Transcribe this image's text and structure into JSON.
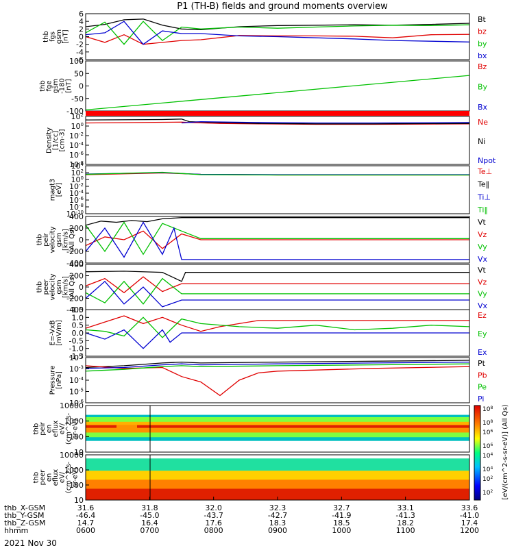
{
  "title": "P1 (TH-B) fields and ground moments overview",
  "date_label": "2021 Nov 30",
  "colors": {
    "black": "#000000",
    "red": "#e00000",
    "green": "#00c000",
    "blue": "#0000d0",
    "axis": "#000000"
  },
  "chart_data": [
    {
      "type": "line",
      "panel": "fgs-gsm",
      "ylabel_lines": [
        "thb",
        "fgs",
        "gsm",
        "[nT]"
      ],
      "yticks": [
        "6",
        "4",
        "2",
        "0",
        "-2",
        "-4",
        "-6"
      ],
      "ylim": [
        -6,
        6
      ],
      "legend": [
        {
          "label": "Bt",
          "color": "#000000"
        },
        {
          "label": "bz",
          "color": "#e00000"
        },
        {
          "label": "by",
          "color": "#00c000"
        },
        {
          "label": "bx",
          "color": "#0000d0"
        }
      ],
      "series": [
        {
          "color": "#000000",
          "x": [
            0,
            0.05,
            0.1,
            0.15,
            0.2,
            0.25,
            0.3,
            0.4,
            0.5,
            0.6,
            0.7,
            0.8,
            0.9,
            1
          ],
          "y": [
            2.6,
            3.2,
            4.4,
            4.6,
            3.0,
            2.0,
            1.8,
            2.6,
            2.9,
            3.0,
            3.1,
            3.0,
            3.2,
            3.5
          ]
        },
        {
          "color": "#e00000",
          "x": [
            0,
            0.05,
            0.1,
            0.15,
            0.2,
            0.25,
            0.3,
            0.4,
            0.5,
            0.6,
            0.7,
            0.8,
            0.9,
            1
          ],
          "y": [
            0,
            -1.5,
            0.5,
            -2,
            -1.5,
            -1.0,
            -0.8,
            0.3,
            0.2,
            0.2,
            0.1,
            -0.3,
            0.5,
            0.6
          ]
        },
        {
          "color": "#00c000",
          "x": [
            0,
            0.05,
            0.1,
            0.15,
            0.2,
            0.25,
            0.3,
            0.4,
            0.5,
            0.6,
            0.7,
            0.8,
            0.9,
            1
          ],
          "y": [
            1,
            3.8,
            -2,
            4,
            -1,
            2.5,
            2.0,
            2.5,
            2.2,
            2.5,
            2.8,
            3.0,
            2.9,
            3.1
          ]
        },
        {
          "color": "#0000d0",
          "x": [
            0,
            0.05,
            0.1,
            0.15,
            0.2,
            0.25,
            0.3,
            0.4,
            0.5,
            0.6,
            0.7,
            0.8,
            0.9,
            1
          ],
          "y": [
            0.5,
            1,
            4,
            -2,
            1.5,
            0.8,
            0.8,
            0.2,
            0.0,
            -0.3,
            -0.6,
            -1.0,
            -1.2,
            -1.4
          ]
        }
      ]
    },
    {
      "type": "line",
      "panel": "fge-gsm",
      "ylabel_lines": [
        "thb",
        "fge",
        "gsm",
        "-180",
        "[nT]"
      ],
      "yticks": [
        "100",
        "50",
        "0",
        "-50",
        "-100"
      ],
      "ylim": [
        -125,
        100
      ],
      "legend": [
        {
          "label": "Bz",
          "color": "#e00000"
        },
        {
          "label": "By",
          "color": "#00c000"
        },
        {
          "label": "Bx",
          "color": "#0000d0"
        }
      ],
      "series": [
        {
          "color": "#00c000",
          "x": [
            0,
            1
          ],
          "y": [
            -120,
            35
          ]
        }
      ]
    },
    {
      "type": "line",
      "panel": "density",
      "ylabel_lines": [
        "Density",
        "[1/cc]",
        "[cm-3]"
      ],
      "yticks": [
        "10^2",
        "10^0",
        "10^-2",
        "10^-4",
        "10^-6",
        "10^-8"
      ],
      "ylim": [
        -8,
        3
      ],
      "legend": [
        {
          "label": "Ne",
          "color": "#e00000"
        },
        {
          "label": "Ni",
          "color": "#000000"
        },
        {
          "label": "Npot",
          "color": "#0000d0"
        }
      ],
      "series": [
        {
          "color": "#e00000",
          "x": [
            0,
            0.25,
            0.27,
            0.35,
            0.45,
            0.6,
            0.75,
            1
          ],
          "y": [
            1.5,
            1.7,
            1.6,
            1.4,
            1.3,
            1.2,
            1.2,
            1.3
          ]
        },
        {
          "color": "#000000",
          "x": [
            0,
            0.2,
            0.25,
            0.27,
            0.35,
            0.45,
            0.6,
            0.75,
            1
          ],
          "y": [
            2.2,
            2.3,
            2.4,
            1.8,
            1.6,
            1.4,
            1.3,
            1.3,
            1.4
          ]
        },
        {
          "color": "#0000d0",
          "x": [
            0.25,
            0.3,
            0.45,
            0.6,
            0.75,
            1
          ],
          "y": [
            1.5,
            1.8,
            1.6,
            1.5,
            1.5,
            1.6
          ]
        }
      ]
    },
    {
      "type": "line",
      "panel": "temperature",
      "ylabel_lines": [
        "magt3",
        "[eV]"
      ],
      "yticks": [
        "10^4",
        "10^2",
        "10^0",
        "10^-2",
        "10^-4",
        "10^-6",
        "10^-8",
        "10^-10"
      ],
      "ylim": [
        -10,
        4
      ],
      "legend": [
        {
          "label": "Te⊥",
          "color": "#e00000"
        },
        {
          "label": "Te‖",
          "color": "#000000"
        },
        {
          "label": "Ti⊥",
          "color": "#0000d0"
        },
        {
          "label": "Ti‖",
          "color": "#00c000"
        }
      ],
      "series": [
        {
          "color": "#e00000",
          "x": [
            0,
            0.2,
            0.3,
            0.5,
            1
          ],
          "y": [
            1.4,
            1.9,
            1.5,
            1.3,
            1.3
          ]
        },
        {
          "color": "#0000d0",
          "x": [
            0,
            0.2,
            0.3,
            0.5,
            1
          ],
          "y": [
            1.6,
            2.0,
            1.5,
            1.4,
            1.4
          ]
        },
        {
          "color": "#00c000",
          "x": [
            0,
            0.2,
            0.3,
            0.5,
            1
          ],
          "y": [
            1.5,
            2.1,
            1.4,
            1.3,
            1.3
          ]
        }
      ]
    },
    {
      "type": "line",
      "panel": "peir-velocity",
      "ylabel_lines": [
        "thb",
        "peir",
        "velocity",
        "gsm",
        "[km/s]",
        "(All Qs)"
      ],
      "yticks": [
        "400",
        "200",
        "0",
        "-200",
        "-400"
      ],
      "ylim": [
        -400,
        400
      ],
      "legend": [
        {
          "label": "Vt",
          "color": "#000000"
        },
        {
          "label": "Vz",
          "color": "#e00000"
        },
        {
          "label": "Vy",
          "color": "#00c000"
        },
        {
          "label": "Vx",
          "color": "#0000d0"
        }
      ],
      "series": [
        {
          "color": "#000000",
          "x": [
            0,
            0.04,
            0.08,
            0.12,
            0.16,
            0.2,
            0.25,
            1
          ],
          "y": [
            250,
            320,
            300,
            330,
            310,
            360,
            380,
            380
          ]
        },
        {
          "color": "#e00000",
          "x": [
            0,
            0.05,
            0.1,
            0.15,
            0.2,
            0.25,
            0.3,
            1
          ],
          "y": [
            -100,
            50,
            0,
            150,
            -150,
            100,
            0,
            0
          ]
        },
        {
          "color": "#00c000",
          "x": [
            0,
            0.05,
            0.1,
            0.15,
            0.2,
            0.25,
            0.3,
            1
          ],
          "y": [
            250,
            -200,
            300,
            -250,
            280,
            150,
            20,
            20
          ]
        },
        {
          "color": "#0000d0",
          "x": [
            0,
            0.05,
            0.1,
            0.15,
            0.2,
            0.23,
            0.25,
            1
          ],
          "y": [
            -200,
            200,
            -300,
            300,
            -250,
            200,
            -340,
            -340
          ]
        }
      ]
    },
    {
      "type": "line",
      "panel": "peer-velocity",
      "ylabel_lines": [
        "thb",
        "peer",
        "velocity",
        "gsm",
        "[km/s]",
        "(All Qs)"
      ],
      "yticks": [
        "400",
        "200",
        "0",
        "-200",
        "-400"
      ],
      "ylim": [
        -400,
        400
      ],
      "legend": [
        {
          "label": "Vt",
          "color": "#000000"
        },
        {
          "label": "Vz",
          "color": "#e00000"
        },
        {
          "label": "Vy",
          "color": "#00c000"
        },
        {
          "label": "Vx",
          "color": "#0000d0"
        }
      ],
      "series": [
        {
          "color": "#000000",
          "x": [
            0,
            0.1,
            0.2,
            0.25,
            0.26,
            1
          ],
          "y": [
            270,
            280,
            260,
            100,
            260,
            260
          ]
        },
        {
          "color": "#e00000",
          "x": [
            0,
            0.05,
            0.1,
            0.15,
            0.2,
            0.25,
            1
          ],
          "y": [
            20,
            150,
            -100,
            180,
            -80,
            60,
            60
          ]
        },
        {
          "color": "#00c000",
          "x": [
            0,
            0.05,
            0.1,
            0.15,
            0.2,
            0.25,
            1
          ],
          "y": [
            -100,
            -280,
            100,
            -300,
            150,
            -120,
            -120
          ]
        },
        {
          "color": "#0000d0",
          "x": [
            0,
            0.05,
            0.1,
            0.15,
            0.2,
            0.25,
            1
          ],
          "y": [
            -200,
            100,
            -300,
            0,
            -350,
            -230,
            -230
          ]
        }
      ]
    },
    {
      "type": "line",
      "panel": "e-field",
      "ylabel_lines": [
        "E=-VxB",
        "[mV/m]"
      ],
      "yticks": [
        "1.5",
        "1.0",
        "0.5",
        "0.0",
        "-0.5",
        "-1.0",
        "-1.5"
      ],
      "ylim": [
        -1.5,
        1.5
      ],
      "legend": [
        {
          "label": "Ez",
          "color": "#e00000"
        },
        {
          "label": "Ey",
          "color": "#00c000"
        },
        {
          "label": "Ex",
          "color": "#0000d0"
        }
      ],
      "series": [
        {
          "color": "#e00000",
          "x": [
            0,
            0.05,
            0.1,
            0.15,
            0.2,
            0.25,
            0.3,
            0.35,
            0.45,
            0.6,
            0.75,
            0.9,
            1
          ],
          "y": [
            0.3,
            0.7,
            1.1,
            0.6,
            1.0,
            0.5,
            0.1,
            0.4,
            0.8,
            0.8,
            0.8,
            0.8,
            0.8
          ]
        },
        {
          "color": "#00c000",
          "x": [
            0,
            0.05,
            0.1,
            0.15,
            0.2,
            0.25,
            0.3,
            0.4,
            0.5,
            0.6,
            0.7,
            0.8,
            0.9,
            1
          ],
          "y": [
            0.2,
            0.1,
            -0.2,
            1.0,
            -0.3,
            0.9,
            0.6,
            0.4,
            0.3,
            0.5,
            0.2,
            0.3,
            0.5,
            0.4
          ]
        },
        {
          "color": "#0000d0",
          "x": [
            0,
            0.05,
            0.1,
            0.15,
            0.2,
            0.22,
            0.25,
            1
          ],
          "y": [
            0.0,
            -0.4,
            0.2,
            -1.0,
            0.2,
            -0.6,
            0.0,
            0.0
          ]
        }
      ]
    },
    {
      "type": "line",
      "panel": "pressure",
      "ylabel_lines": [
        "Pressure",
        "[nPa]"
      ],
      "yticks": [
        "10^-2",
        "10^-3",
        "10^-4",
        "10^-5",
        "10^-6"
      ],
      "ylim": [
        -6.3,
        -1.3
      ],
      "legend": [
        {
          "label": "Pt",
          "color": "#000000"
        },
        {
          "label": "Pb",
          "color": "#e00000"
        },
        {
          "label": "Pe",
          "color": "#00c000"
        },
        {
          "label": "Pi",
          "color": "#0000d0"
        }
      ],
      "series": [
        {
          "color": "#000000",
          "x": [
            0,
            0.1,
            0.2,
            0.25,
            0.3,
            0.5,
            0.75,
            1
          ],
          "y": [
            -2.4,
            -2.2,
            -1.9,
            -1.8,
            -1.9,
            -1.8,
            -1.7,
            -1.6
          ]
        },
        {
          "color": "#e00000",
          "x": [
            0,
            0.1,
            0.2,
            0.25,
            0.3,
            0.35,
            0.4,
            0.45,
            0.5,
            0.75,
            1
          ],
          "y": [
            -2.2,
            -2.5,
            -2.4,
            -3.4,
            -4.0,
            -5.5,
            -3.8,
            -3.0,
            -2.8,
            -2.5,
            -2.3
          ]
        },
        {
          "color": "#00c000",
          "x": [
            0,
            0.1,
            0.2,
            0.25,
            0.3,
            0.5,
            0.75,
            1
          ],
          "y": [
            -2.8,
            -2.6,
            -2.3,
            -2.2,
            -2.3,
            -2.2,
            -2.1,
            -2.0
          ]
        },
        {
          "color": "#0000d0",
          "x": [
            0,
            0.1,
            0.2,
            0.25,
            0.3,
            0.5,
            0.75,
            1
          ],
          "y": [
            -2.5,
            -2.4,
            -2.1,
            -2.0,
            -2.1,
            -2.0,
            -1.9,
            -1.8
          ]
        }
      ]
    },
    {
      "type": "heatmap",
      "panel": "peir-eflux",
      "ylabel_lines": [
        "thb",
        "peir",
        "en",
        "eflux",
        "eV/",
        "(cm^2-s-",
        "sr-eV)"
      ],
      "yticks": [
        "10000",
        "1000",
        "100",
        "10"
      ],
      "ylim": [
        1,
        4.3
      ]
    },
    {
      "type": "heatmap",
      "panel": "peer-eflux",
      "ylabel_lines": [
        "thb",
        "peer",
        "en",
        "eflux",
        "eV/",
        "(cm^2-s-",
        "sr-eV)"
      ],
      "yticks": [
        "10000",
        "1000",
        "100",
        "10"
      ],
      "ylim": [
        0.8,
        4.3
      ]
    }
  ],
  "colorbar": {
    "ticks": [
      "10^8",
      "10^6",
      "10^4",
      "10^2"
    ],
    "label": "[eV/(cm^2-s-sr-eV)]",
    "label2": "[eV/(cm^2-s-sr-eV)] (All Qs)"
  },
  "xaxis": {
    "rows": [
      {
        "label": "thb_X-GSM",
        "values": [
          "31.6",
          "31.8",
          "32.0",
          "32.3",
          "32.7",
          "33.1",
          "33.6"
        ]
      },
      {
        "label": "thb_Y-GSM",
        "values": [
          "-46.4",
          "-45.0",
          "-43.7",
          "-42.7",
          "-41.9",
          "-41.3",
          "-41.0"
        ]
      },
      {
        "label": "thb_Z-GSM",
        "values": [
          "14.7",
          "16.4",
          "17.6",
          "18.3",
          "18.5",
          "18.2",
          "17.4"
        ]
      },
      {
        "label": "hhmm",
        "values": [
          "0600",
          "0700",
          "0800",
          "0900",
          "1000",
          "1100",
          "1200"
        ]
      }
    ]
  }
}
